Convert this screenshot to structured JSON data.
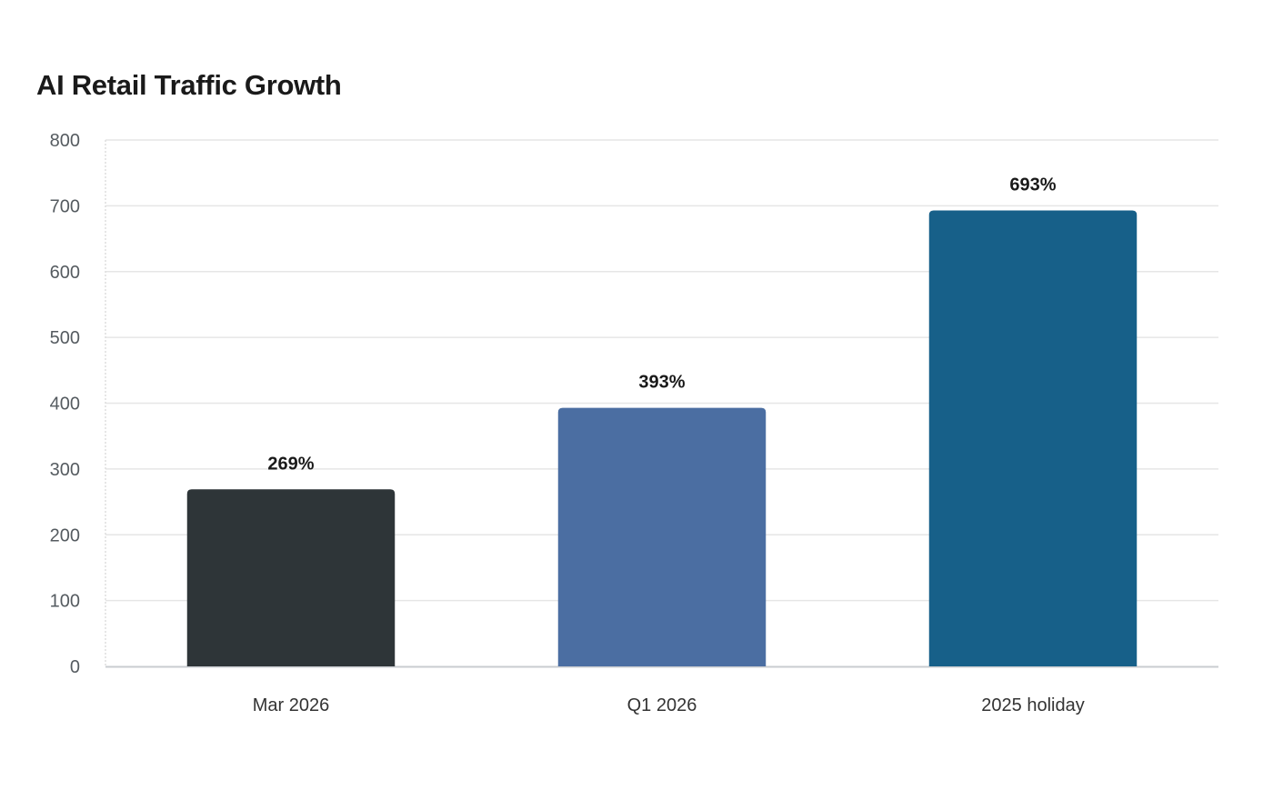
{
  "chart_data": {
    "type": "bar",
    "title": "AI Retail Traffic Growth",
    "xlabel": "",
    "ylabel": "",
    "categories": [
      "Mar 2026",
      "Q1 2026",
      "2025 holiday"
    ],
    "values": [
      269,
      393,
      693
    ],
    "data_labels": [
      "269%",
      "393%",
      "693%"
    ],
    "bar_colors": [
      "#2e3538",
      "#4b6ea2",
      "#176089"
    ],
    "ylim": [
      0,
      800
    ],
    "yticks": [
      0,
      100,
      200,
      300,
      400,
      500,
      600,
      700,
      800
    ],
    "grid": true,
    "legend": "none"
  }
}
